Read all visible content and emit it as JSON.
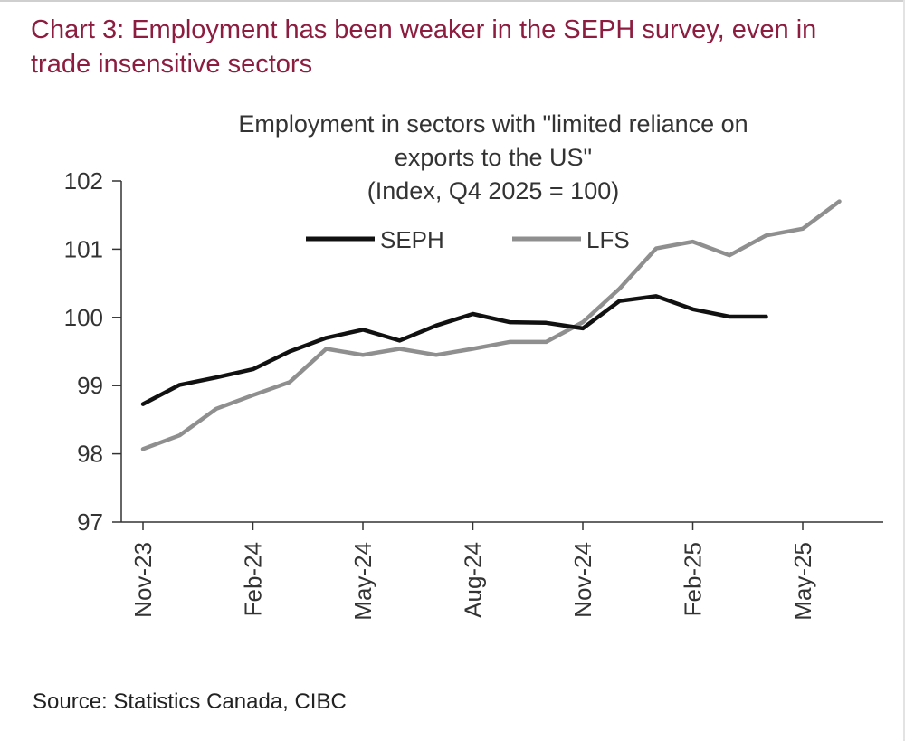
{
  "heading": "Chart 3: Employment has been weaker in the SEPH survey, even in trade insensitive sectors",
  "source": "Source: Statistics Canada, CIBC",
  "colors": {
    "heading": "#8c1d40",
    "seph": "#111111",
    "lfs": "#8f8f8f",
    "axis": "#333333",
    "text": "#333333"
  },
  "chart_data": {
    "type": "line",
    "title_lines": [
      "Employment in sectors with \"limited reliance on",
      "exports to the US\"",
      "(Index, Q4 2025 = 100)"
    ],
    "x": [
      "Nov-23",
      "Dec-23",
      "Jan-24",
      "Feb-24",
      "Mar-24",
      "Apr-24",
      "May-24",
      "Jun-24",
      "Jul-24",
      "Aug-24",
      "Sep-24",
      "Oct-24",
      "Nov-24",
      "Dec-24",
      "Jan-25",
      "Feb-25",
      "Mar-25",
      "Apr-25",
      "May-25",
      "Jun-25"
    ],
    "x_tick_labels": [
      "Nov-23",
      "Feb-24",
      "May-24",
      "Aug-24",
      "Nov-24",
      "Feb-25",
      "May-25"
    ],
    "x_tick_indices": [
      0,
      3,
      6,
      9,
      12,
      15,
      18
    ],
    "ylim": [
      97,
      102
    ],
    "y_ticks": [
      97,
      98,
      99,
      100,
      101,
      102
    ],
    "grid": false,
    "legend_position": "top-center",
    "series": [
      {
        "name": "SEPH",
        "values": [
          98.73,
          99.01,
          99.12,
          99.24,
          99.5,
          99.7,
          99.82,
          99.66,
          99.88,
          100.05,
          99.93,
          99.92,
          99.84,
          100.24,
          100.31,
          100.12,
          100.01,
          100.01,
          null,
          null
        ]
      },
      {
        "name": "LFS",
        "values": [
          98.07,
          98.27,
          98.66,
          98.86,
          99.05,
          99.54,
          99.45,
          99.54,
          99.45,
          99.54,
          99.64,
          99.64,
          99.93,
          100.42,
          101.01,
          101.11,
          100.91,
          101.2,
          101.3,
          101.7
        ]
      }
    ]
  }
}
